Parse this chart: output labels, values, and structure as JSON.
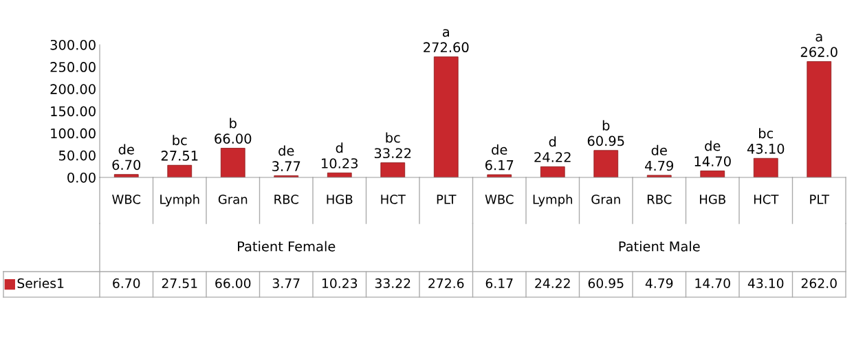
{
  "chart_data": {
    "type": "bar",
    "categories": [
      "WBC",
      "Lymph",
      "Gran",
      "RBC",
      "HGB",
      "HCT",
      "PLT",
      "WBC",
      "Lymph",
      "Gran",
      "RBC",
      "HGB",
      "HCT",
      "PLT"
    ],
    "series": [
      {
        "name": "Series1",
        "color": "#c8282d",
        "values": [
          6.7,
          27.51,
          66.0,
          3.77,
          10.23,
          33.22,
          272.6,
          6.17,
          24.22,
          60.95,
          4.79,
          14.7,
          43.1,
          262.0
        ],
        "value_labels": [
          "de\n6.70",
          "bc\n27.51",
          "b\n66.00",
          "de\n3.77",
          "d\n10.23",
          "bc\n33.22",
          "a\n272.60",
          "de\n6.17",
          "d\n24.22",
          "b\n60.95",
          "de\n4.79",
          "de\n14.70",
          "bc\n43.10",
          "a\n262.0"
        ]
      }
    ],
    "annotations": [
      "Patient Female",
      "Patient Male",
      "6.70",
      "27.51",
      "66.00",
      "3.77",
      "10.23",
      "33.22",
      "272.6",
      "6.17",
      "24.22",
      "60.95",
      "4.79",
      "14.70",
      "43.10",
      "262.0"
    ],
    "ylim": [
      0,
      300
    ],
    "yticks": [
      {
        "value": 0,
        "label": "0.00"
      },
      {
        "value": 50,
        "label": "50.00"
      },
      {
        "value": 100,
        "label": "100.00"
      },
      {
        "value": 150,
        "label": "150.00"
      },
      {
        "value": 200,
        "label": "200.00"
      },
      {
        "value": 250,
        "label": "250.00"
      },
      {
        "value": 300,
        "label": "300.00"
      }
    ],
    "grid": false,
    "legend": "bottom"
  }
}
